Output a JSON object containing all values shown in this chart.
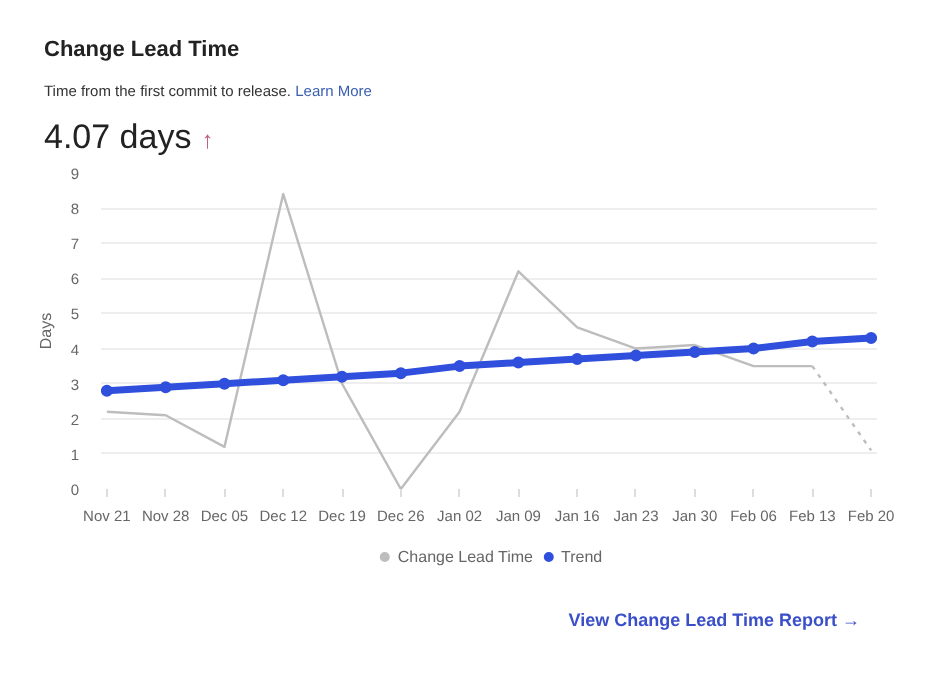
{
  "chart_data": {
    "type": "line",
    "title": "Change Lead Time",
    "subtitle": "Time from the first commit to release.",
    "ylabel": "Days",
    "categories": [
      "Nov 21",
      "Nov 28",
      "Dec 05",
      "Dec 12",
      "Dec 19",
      "Dec 26",
      "Jan 02",
      "Jan 09",
      "Jan 16",
      "Jan 23",
      "Jan 30",
      "Feb 06",
      "Feb 13",
      "Feb 20"
    ],
    "series": [
      {
        "name": "Change Lead Time",
        "color": "#bdbdbd",
        "line_style": "solid",
        "marker": "none",
        "values": [
          2.2,
          2.1,
          1.2,
          8.4,
          3.0,
          0.0,
          2.2,
          6.2,
          4.6,
          4.0,
          4.1,
          3.5,
          3.5,
          null
        ]
      },
      {
        "color": "#bdbdbd",
        "line_style": "dotted",
        "marker": "none",
        "values": [
          null,
          null,
          null,
          null,
          null,
          null,
          null,
          null,
          null,
          null,
          null,
          null,
          3.5,
          1.1
        ]
      },
      {
        "name": "Trend",
        "color": "#2f4fdc",
        "line_style": "solid",
        "marker": "circle",
        "values": [
          2.8,
          2.9,
          3.0,
          3.1,
          3.2,
          3.3,
          3.5,
          3.6,
          3.7,
          3.8,
          3.9,
          4.0,
          4.2,
          4.3
        ]
      }
    ],
    "ylim": [
      0,
      9
    ],
    "yticks": [
      0,
      1,
      2,
      3,
      4,
      5,
      6,
      7,
      8,
      9
    ],
    "grid": "y",
    "legend": "bottom",
    "annotations": [
      "Learn More",
      "4.07 days",
      "↑",
      "View Change Lead Time Report →"
    ]
  }
}
